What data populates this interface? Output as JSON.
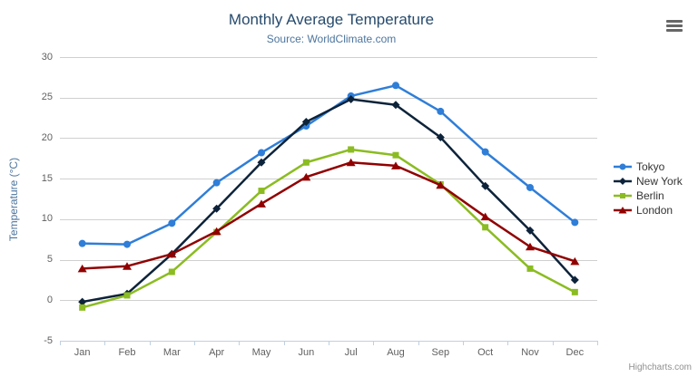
{
  "chart_data": {
    "type": "line",
    "title": "Monthly Average Temperature",
    "subtitle": "Source: WorldClimate.com",
    "xlabel": "",
    "ylabel": "Temperature (°C)",
    "categories": [
      "Jan",
      "Feb",
      "Mar",
      "Apr",
      "May",
      "Jun",
      "Jul",
      "Aug",
      "Sep",
      "Oct",
      "Nov",
      "Dec"
    ],
    "ylim": [
      -5,
      30
    ],
    "yticks": [
      -5,
      0,
      5,
      10,
      15,
      20,
      25,
      30
    ],
    "grid": true,
    "legend_position": "right",
    "series": [
      {
        "name": "Tokyo",
        "color": "#2f7ed8",
        "marker": "circle",
        "values": [
          7.0,
          6.9,
          9.5,
          14.5,
          18.2,
          21.5,
          25.2,
          26.5,
          23.3,
          18.3,
          13.9,
          9.6
        ]
      },
      {
        "name": "New York",
        "color": "#0d233a",
        "marker": "diamond",
        "values": [
          -0.2,
          0.8,
          5.7,
          11.3,
          17.0,
          22.0,
          24.8,
          24.1,
          20.1,
          14.1,
          8.6,
          2.5
        ]
      },
      {
        "name": "Berlin",
        "color": "#8bbc21",
        "marker": "square",
        "values": [
          -0.9,
          0.6,
          3.5,
          8.4,
          13.5,
          17.0,
          18.6,
          17.9,
          14.3,
          9.0,
          3.9,
          1.0
        ]
      },
      {
        "name": "London",
        "color": "#910000",
        "marker": "triangle",
        "values": [
          3.9,
          4.2,
          5.7,
          8.5,
          11.9,
          15.2,
          17.0,
          16.6,
          14.2,
          10.3,
          6.6,
          4.8
        ]
      }
    ]
  },
  "credits": "Highcharts.com",
  "export_menu": {
    "icon": "hamburger-icon"
  },
  "colors": {
    "title": "#274b6d",
    "subtitle": "#4d759e",
    "axis_title": "#4d759e",
    "axis_labels": "#606060",
    "grid_line": "#d0d0d0",
    "axis_line": "#c0d0e0",
    "tick": "#c0d0e0",
    "legend_text": "#333333",
    "credit": "#909090",
    "menu_icon": "#666666",
    "background": "#ffffff"
  }
}
